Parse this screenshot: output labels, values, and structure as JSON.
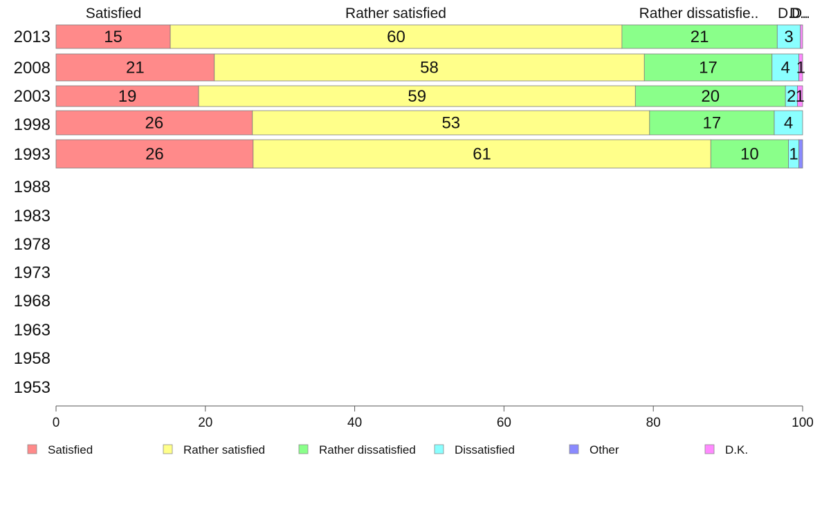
{
  "chart_data": {
    "type": "bar",
    "orientation": "horizontal",
    "stacked": true,
    "title": "",
    "xlabel": "",
    "ylabel": "",
    "xlim": [
      0,
      100
    ],
    "x_ticks": [
      0,
      20,
      40,
      60,
      80,
      100
    ],
    "categories": [
      "2013",
      "2008",
      "2003",
      "1998",
      "1993",
      "1988",
      "1983",
      "1978",
      "1973",
      "1968",
      "1963",
      "1958",
      "1953"
    ],
    "series": [
      {
        "name": "Satisfied",
        "color": "#ff8a8a",
        "values": [
          15.3,
          21.2,
          19.1,
          26.3,
          26.4,
          null,
          null,
          null,
          null,
          null,
          null,
          null,
          null
        ]
      },
      {
        "name": "Rather satisfied",
        "color": "#ffff8a",
        "values": [
          60.5,
          57.6,
          58.5,
          53.2,
          61.3,
          null,
          null,
          null,
          null,
          null,
          null,
          null,
          null
        ]
      },
      {
        "name": "Rather dissatisfied",
        "color": "#8aff8a",
        "values": [
          20.8,
          17.1,
          20.1,
          16.7,
          10.4,
          null,
          null,
          null,
          null,
          null,
          null,
          null,
          null
        ]
      },
      {
        "name": "Dissatisfied",
        "color": "#8affff",
        "values": [
          3.1,
          3.6,
          1.6,
          3.8,
          1.4,
          null,
          null,
          null,
          null,
          null,
          null,
          null,
          null
        ]
      },
      {
        "name": "Other",
        "color": "#8a8aff",
        "values": [
          0,
          0,
          0,
          0,
          0.5,
          null,
          null,
          null,
          null,
          null,
          null,
          null,
          null
        ]
      },
      {
        "name": "D.K.",
        "color": "#ff8aff",
        "values": [
          0.3,
          0.5,
          0.7,
          0,
          0,
          null,
          null,
          null,
          null,
          null,
          null,
          null,
          null
        ]
      }
    ],
    "segment_labels": [
      [
        "15",
        "60",
        "21",
        "3",
        "",
        ""
      ],
      [
        "21",
        "58",
        "17",
        "4",
        "",
        "1"
      ],
      [
        "19",
        "59",
        "20",
        "2",
        "",
        "1"
      ],
      [
        "26",
        "53",
        "17",
        "4",
        "",
        ""
      ],
      [
        "26",
        "61",
        "10",
        "1",
        "",
        ""
      ]
    ],
    "top_labels": [
      "Satisfied",
      "Rather satisfied",
      "Rather dissatisfie..",
      "D..",
      "D..",
      "D.."
    ],
    "legend": {
      "placement": "bottom",
      "entries": [
        "Satisfied",
        "Rather satisfied",
        "Rather dissatisfied",
        "Dissatisfied",
        "Other",
        "D.K."
      ]
    },
    "grid": false
  }
}
